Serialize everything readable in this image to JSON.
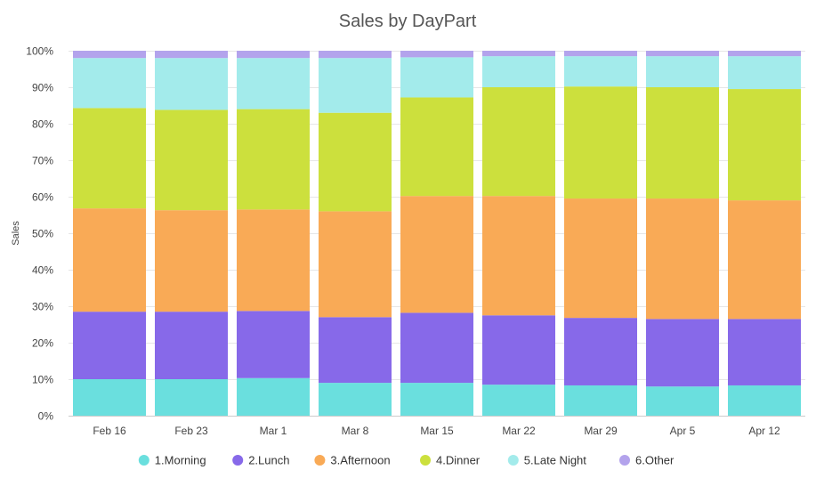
{
  "chart_data": {
    "type": "bar",
    "stacked": true,
    "title": "Sales by DayPart",
    "xlabel": "",
    "ylabel": "Sales",
    "ylim": [
      0,
      100
    ],
    "y_ticks": [
      "0%",
      "10%",
      "20%",
      "30%",
      "40%",
      "50%",
      "60%",
      "70%",
      "80%",
      "90%",
      "100%"
    ],
    "grid": true,
    "legend_position": "bottom",
    "categories": [
      "Feb 16",
      "Feb 23",
      "Mar 1",
      "Mar 8",
      "Mar 15",
      "Mar 22",
      "Mar 29",
      "Apr 5",
      "Apr 12"
    ],
    "series": [
      {
        "name": "1.Morning",
        "color": "#6adfde",
        "values": [
          10.0,
          10.0,
          10.3,
          9.0,
          9.0,
          8.5,
          8.3,
          8.0,
          8.3
        ]
      },
      {
        "name": "2.Lunch",
        "color": "#8769e9",
        "values": [
          18.5,
          18.5,
          18.4,
          18.0,
          19.2,
          19.0,
          18.5,
          18.5,
          18.2
        ]
      },
      {
        "name": "3.Afternoon",
        "color": "#f9aa56",
        "values": [
          28.3,
          27.8,
          27.8,
          29.0,
          32.0,
          32.7,
          32.7,
          33.0,
          32.5
        ]
      },
      {
        "name": "4.Dinner",
        "color": "#cce03d",
        "values": [
          27.5,
          27.5,
          27.5,
          27.0,
          27.0,
          29.8,
          30.7,
          30.5,
          30.5
        ]
      },
      {
        "name": "5.Late Night",
        "color": "#a3ebeb",
        "values": [
          13.7,
          14.2,
          14.0,
          15.0,
          11.0,
          8.5,
          8.3,
          8.5,
          9.0
        ]
      },
      {
        "name": "6.Other",
        "color": "#b3a3ec",
        "values": [
          2.0,
          2.0,
          2.0,
          2.0,
          1.8,
          1.5,
          1.5,
          1.5,
          1.5
        ]
      }
    ]
  }
}
